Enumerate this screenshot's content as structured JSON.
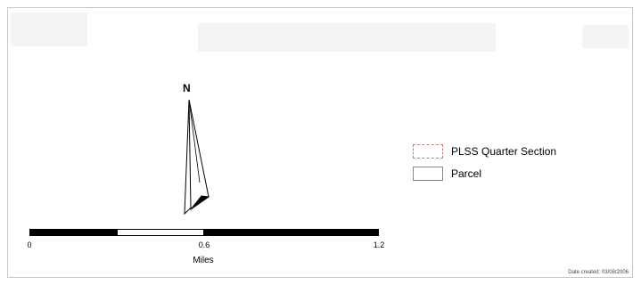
{
  "map": {
    "north_label": "N",
    "legend": {
      "items": [
        {
          "label": "PLSS Quarter Section",
          "symbol": "dashed-outline-icon",
          "color": "#d17a7a"
        },
        {
          "label": "Parcel",
          "symbol": "solid-outline-icon",
          "color": "#8a8a8a"
        }
      ]
    },
    "scale_bar": {
      "ticks": [
        "0",
        "0.6",
        "1.2"
      ],
      "units": "Miles"
    },
    "date_created": "Date created: 03/08/2006"
  }
}
